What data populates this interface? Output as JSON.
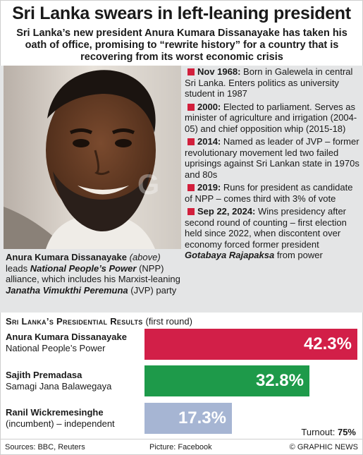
{
  "headline": "Sri Lanka swears in left-leaning president",
  "standfirst": "Sri Lanka’s new president Anura Kumara Dissanayake has taken his oath of office, promising to “rewrite history” for a country that is recovering from its worst economic crisis",
  "caption": {
    "name": "Anura Kumara Dissanayake",
    "above": "(above)",
    "leads": "leads",
    "party": "National People’s Power",
    "mid": "(NPP) alliance, which includes his Marxist-leaning",
    "jvp": "Janatha Vimukthi Peremuna",
    "end": "(JVP) party"
  },
  "timeline": [
    {
      "date": "Nov 1968:",
      "text": "Born in Galewela in central Sri Lanka. Enters politics as university student in 1987"
    },
    {
      "date": "2000:",
      "text": "Elected to parliament. Serves as minister of agriculture and irrigation (2004-05) and chief opposition whip (2015-18)"
    },
    {
      "date": "2014:",
      "text": "Named as leader of JVP – former revolutionary movement led two failed uprisings against Sri Lankan state in 1970s and 80s"
    },
    {
      "date": "2019:",
      "text": "Runs for president as candidate of NPP – comes third with 3% of vote"
    },
    {
      "date": "Sep 22, 2024:",
      "text": "Wins presidency after second round of counting – first election held since 2022, when discontent over economy forced former president",
      "bold_italic": "Gotabaya Rajapaksa",
      "tail": "from power"
    }
  ],
  "results": {
    "title": "Sri Lanka’s Presidential Results",
    "subtitle": "(first round)",
    "candidates": [
      {
        "name": "Anura Kumara Dissanayake",
        "party": "National People’s Power",
        "value": 42.3,
        "label": "42.3%",
        "color": "#d21f48"
      },
      {
        "name": "Sajith Premadasa",
        "party": "Samagi Jana Balawegaya",
        "value": 32.8,
        "label": "32.8%",
        "color": "#1e9a4a"
      },
      {
        "name": "Ranil Wickremesinghe",
        "party": "(incumbent) – independent",
        "value": 17.3,
        "label": "17.3%",
        "color": "#a6b5d3"
      }
    ],
    "turnout_label": "Turnout:",
    "turnout_value": "75%"
  },
  "footer": {
    "sources": "Sources: BBC, Reuters",
    "picture": "Picture: Facebook",
    "credit": "© GRAPHIC NEWS"
  }
}
